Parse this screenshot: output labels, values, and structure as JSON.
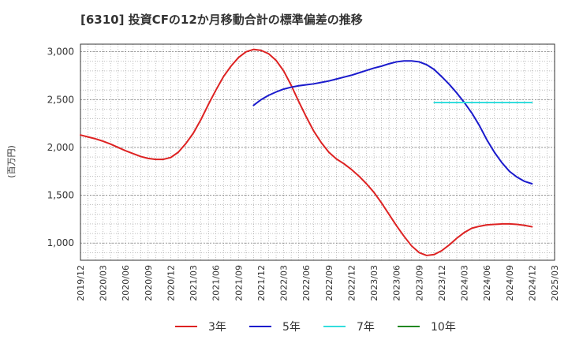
{
  "chart_data": {
    "type": "line",
    "title": "[6310]  投資CFの12か月移動合計の標準偏差の推移",
    "ylabel": "(百万円)",
    "xlabel": "",
    "ylim": [
      820,
      3080
    ],
    "y_ticks": [
      1000,
      1500,
      2000,
      2500,
      3000
    ],
    "y_tick_labels": [
      "1,000",
      "1,500",
      "2,000",
      "2,500",
      "3,000"
    ],
    "x_range": [
      "2019-12",
      "2025-03"
    ],
    "x_tick_labels": [
      "2019/12",
      "2020/03",
      "2020/06",
      "2020/09",
      "2020/12",
      "2021/03",
      "2021/06",
      "2021/09",
      "2021/12",
      "2022/03",
      "2022/06",
      "2022/09",
      "2022/12",
      "2023/03",
      "2023/06",
      "2023/09",
      "2023/12",
      "2024/03",
      "2024/06",
      "2024/09",
      "2024/12",
      "2025/03"
    ],
    "grid": true,
    "legend_position": "bottom",
    "series": [
      {
        "name": "3年",
        "color": "#dd2222",
        "points": [
          [
            "2019-12",
            2130
          ],
          [
            "2020-01",
            2110
          ],
          [
            "2020-02",
            2090
          ],
          [
            "2020-03",
            2065
          ],
          [
            "2020-04",
            2035
          ],
          [
            "2020-05",
            2000
          ],
          [
            "2020-06",
            1965
          ],
          [
            "2020-07",
            1935
          ],
          [
            "2020-08",
            1905
          ],
          [
            "2020-09",
            1885
          ],
          [
            "2020-10",
            1875
          ],
          [
            "2020-11",
            1875
          ],
          [
            "2020-12",
            1895
          ],
          [
            "2021-01",
            1950
          ],
          [
            "2021-02",
            2040
          ],
          [
            "2021-03",
            2150
          ],
          [
            "2021-04",
            2290
          ],
          [
            "2021-05",
            2450
          ],
          [
            "2021-06",
            2600
          ],
          [
            "2021-07",
            2740
          ],
          [
            "2021-08",
            2850
          ],
          [
            "2021-09",
            2940
          ],
          [
            "2021-10",
            3000
          ],
          [
            "2021-11",
            3025
          ],
          [
            "2021-12",
            3015
          ],
          [
            "2022-01",
            2980
          ],
          [
            "2022-02",
            2910
          ],
          [
            "2022-03",
            2800
          ],
          [
            "2022-04",
            2650
          ],
          [
            "2022-05",
            2480
          ],
          [
            "2022-06",
            2320
          ],
          [
            "2022-07",
            2170
          ],
          [
            "2022-08",
            2050
          ],
          [
            "2022-09",
            1950
          ],
          [
            "2022-10",
            1880
          ],
          [
            "2022-11",
            1830
          ],
          [
            "2022-12",
            1770
          ],
          [
            "2023-01",
            1700
          ],
          [
            "2023-02",
            1620
          ],
          [
            "2023-03",
            1530
          ],
          [
            "2023-04",
            1420
          ],
          [
            "2023-05",
            1300
          ],
          [
            "2023-06",
            1180
          ],
          [
            "2023-07",
            1070
          ],
          [
            "2023-08",
            970
          ],
          [
            "2023-09",
            900
          ],
          [
            "2023-10",
            870
          ],
          [
            "2023-11",
            880
          ],
          [
            "2023-12",
            920
          ],
          [
            "2024-01",
            980
          ],
          [
            "2024-02",
            1050
          ],
          [
            "2024-03",
            1110
          ],
          [
            "2024-04",
            1155
          ],
          [
            "2024-05",
            1175
          ],
          [
            "2024-06",
            1190
          ],
          [
            "2024-07",
            1195
          ],
          [
            "2024-08",
            1200
          ],
          [
            "2024-09",
            1200
          ],
          [
            "2024-10",
            1195
          ],
          [
            "2024-11",
            1185
          ],
          [
            "2024-12",
            1170
          ]
        ]
      },
      {
        "name": "5年",
        "color": "#1a1acc",
        "points": [
          [
            "2021-11",
            2440
          ],
          [
            "2021-12",
            2500
          ],
          [
            "2022-01",
            2545
          ],
          [
            "2022-02",
            2580
          ],
          [
            "2022-03",
            2610
          ],
          [
            "2022-04",
            2630
          ],
          [
            "2022-05",
            2645
          ],
          [
            "2022-06",
            2655
          ],
          [
            "2022-07",
            2665
          ],
          [
            "2022-08",
            2680
          ],
          [
            "2022-09",
            2695
          ],
          [
            "2022-10",
            2715
          ],
          [
            "2022-11",
            2735
          ],
          [
            "2022-12",
            2755
          ],
          [
            "2023-01",
            2780
          ],
          [
            "2023-02",
            2805
          ],
          [
            "2023-03",
            2830
          ],
          [
            "2023-04",
            2850
          ],
          [
            "2023-05",
            2875
          ],
          [
            "2023-06",
            2895
          ],
          [
            "2023-07",
            2905
          ],
          [
            "2023-08",
            2905
          ],
          [
            "2023-09",
            2895
          ],
          [
            "2023-10",
            2865
          ],
          [
            "2023-11",
            2815
          ],
          [
            "2023-12",
            2740
          ],
          [
            "2024-01",
            2660
          ],
          [
            "2024-02",
            2570
          ],
          [
            "2024-03",
            2470
          ],
          [
            "2024-04",
            2360
          ],
          [
            "2024-05",
            2230
          ],
          [
            "2024-06",
            2080
          ],
          [
            "2024-07",
            1950
          ],
          [
            "2024-08",
            1840
          ],
          [
            "2024-09",
            1750
          ],
          [
            "2024-10",
            1690
          ],
          [
            "2024-11",
            1645
          ],
          [
            "2024-12",
            1620
          ]
        ]
      },
      {
        "name": "7年",
        "color": "#33dddd",
        "points": [
          [
            "2023-11",
            2470
          ],
          [
            "2023-12",
            2470
          ],
          [
            "2024-01",
            2470
          ],
          [
            "2024-02",
            2470
          ],
          [
            "2024-03",
            2470
          ],
          [
            "2024-04",
            2470
          ],
          [
            "2024-05",
            2470
          ],
          [
            "2024-06",
            2470
          ],
          [
            "2024-07",
            2470
          ],
          [
            "2024-08",
            2470
          ],
          [
            "2024-09",
            2470
          ],
          [
            "2024-10",
            2470
          ],
          [
            "2024-11",
            2470
          ],
          [
            "2024-12",
            2470
          ]
        ]
      },
      {
        "name": "10年",
        "color": "#228822",
        "points": []
      }
    ]
  }
}
